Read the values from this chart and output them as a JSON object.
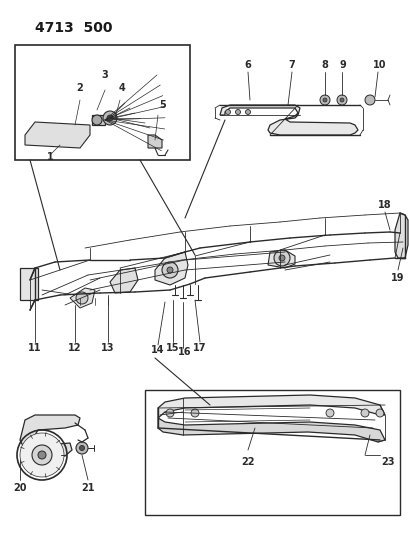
{
  "title": "4713  500",
  "bg_color": "#ffffff",
  "line_color": "#2a2a2a",
  "title_fontsize": 10,
  "label_fontsize": 7,
  "fig_width": 4.1,
  "fig_height": 5.33,
  "dpi": 100
}
